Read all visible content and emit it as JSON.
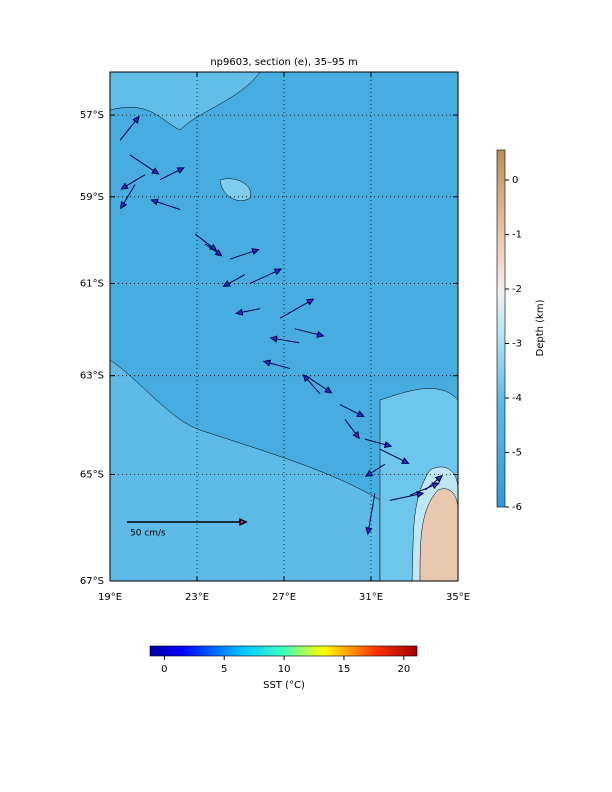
{
  "chart_data": {
    "type": "quiver",
    "title": "np9603, section (e), 35–95 m",
    "xlim": [
      19,
      35
    ],
    "ylim": [
      -67,
      -55.9
    ],
    "xticks": [
      {
        "value": 19,
        "label": "19°E"
      },
      {
        "value": 23,
        "label": "23°E"
      },
      {
        "value": 27,
        "label": "27°E"
      },
      {
        "value": 31,
        "label": "31°E"
      },
      {
        "value": 35,
        "label": "35°E"
      }
    ],
    "yticks": [
      {
        "value": -57,
        "label": "57°S"
      },
      {
        "value": -59,
        "label": "59°S"
      },
      {
        "value": -61,
        "label": "61°S"
      },
      {
        "value": -63,
        "label": "63°S"
      },
      {
        "value": -65,
        "label": "65°S"
      },
      {
        "value": -67,
        "label": "67°S"
      }
    ],
    "grid": true,
    "vectors": {
      "color": "#1a2fd8",
      "lon": [
        19.46,
        19.92,
        20.61,
        20.15,
        21.3,
        22.22,
        22.91,
        23.37,
        24.52,
        25.2,
        25.44,
        25.9,
        26.82,
        27.5,
        27.7,
        27.28,
        28.2,
        28.66,
        29.57,
        29.8,
        30.72,
        31.41,
        31.64,
        31.18,
        31.87,
        32.8,
        33.5
      ],
      "lat": [
        -57.63,
        -57.99,
        -58.47,
        -58.71,
        -58.59,
        -59.3,
        -59.87,
        -60.1,
        -60.45,
        -60.8,
        -61.0,
        -61.56,
        -61.77,
        -62.0,
        -62.3,
        -62.85,
        -63.06,
        -63.38,
        -63.6,
        -63.9,
        -64.3,
        -64.5,
        -64.8,
        -65.37,
        -65.5,
        -65.4,
        -65.3
      ],
      "u": [
        8,
        12,
        -10,
        -6,
        10,
        -12,
        9,
        7,
        12,
        -9,
        13,
        -10,
        14,
        12,
        -12,
        -11,
        9,
        -7,
        10,
        6,
        11,
        12,
        -8,
        -3,
        14,
        12,
        7
      ],
      "v": [
        10,
        -8,
        -6,
        -10,
        5,
        4,
        -7,
        -5,
        4,
        -5,
        6,
        -2,
        8,
        -3,
        2,
        3,
        -6,
        8,
        -5,
        -8,
        -3,
        -6,
        -5,
        -17,
        3,
        5,
        6
      ]
    },
    "scale_arrow": {
      "value": 50,
      "label": "50 cm/s",
      "color": "#e020e0"
    },
    "depth_colorbar": {
      "label": "Depth (km)",
      "lim": [
        -6,
        0.55
      ],
      "ticks": [
        0,
        -1,
        -2,
        -3,
        -4,
        -5,
        -6
      ]
    },
    "sst_colorbar": {
      "label": "SST (°C)",
      "lim": [
        -1.2,
        21.1
      ],
      "ticks": [
        0,
        5,
        10,
        15,
        20
      ]
    }
  }
}
